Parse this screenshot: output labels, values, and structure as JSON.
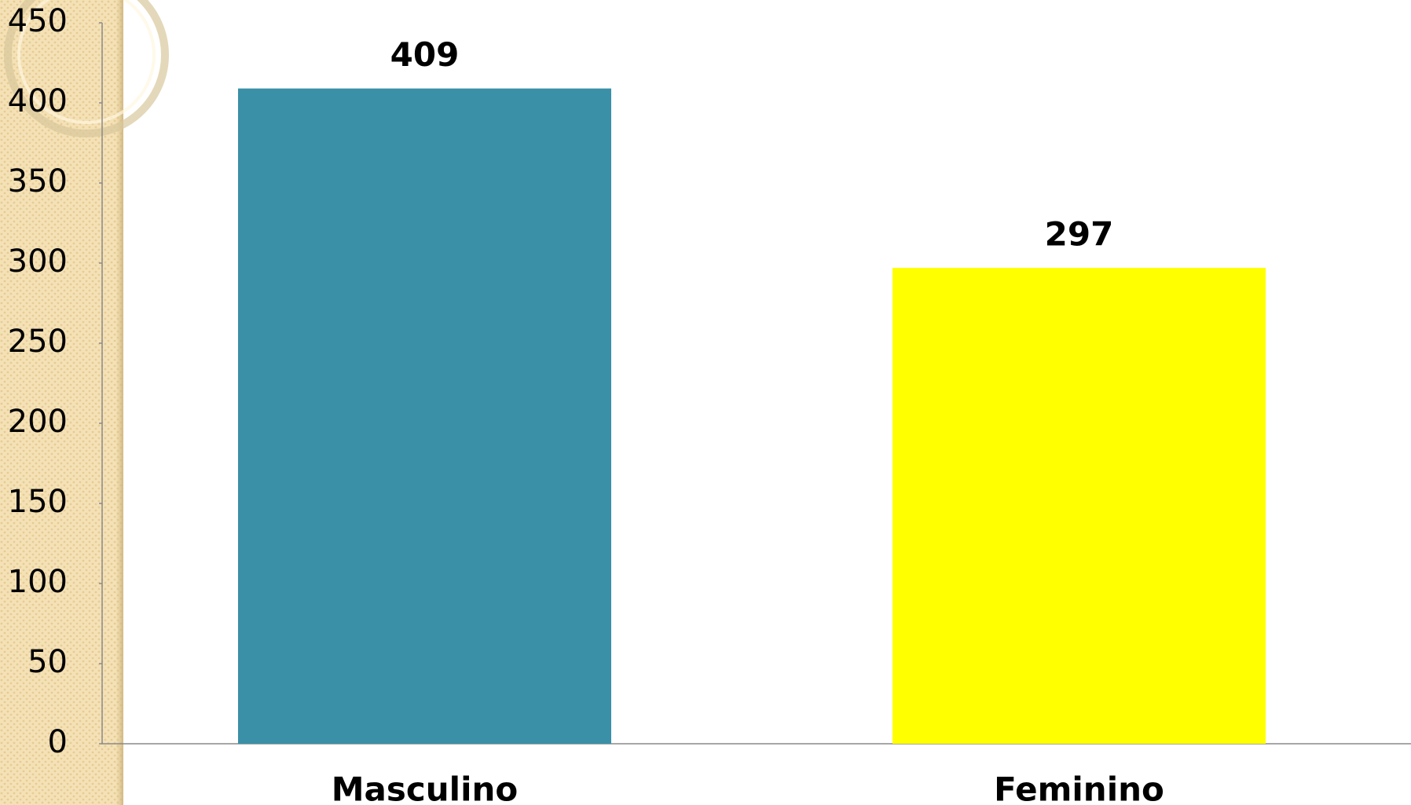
{
  "chart_data": {
    "type": "bar",
    "categories": [
      "Masculino",
      "Feminino"
    ],
    "values": [
      409,
      297
    ],
    "colors": [
      "#3a90a7",
      "#ffff00"
    ],
    "ylim": [
      0,
      450
    ],
    "yticks": [
      0,
      50,
      100,
      150,
      200,
      250,
      300,
      350,
      400,
      450
    ]
  }
}
